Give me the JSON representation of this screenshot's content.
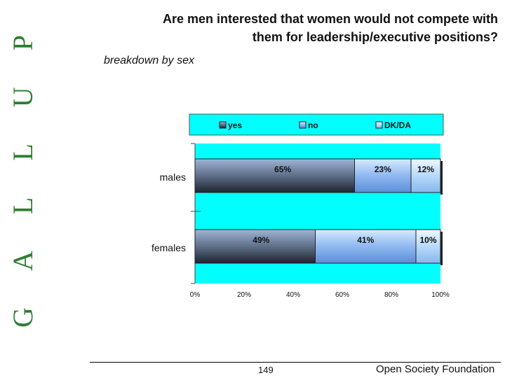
{
  "brand": {
    "text": "GALLUP"
  },
  "header": {
    "title_line1": "Are men interested that women would not compete with",
    "title_line2": "them for leadership/executive positions?",
    "subtitle": "breakdown by sex"
  },
  "footer": {
    "page_number": "149",
    "organization": "Open Society Foundation"
  },
  "chart_data": {
    "type": "bar",
    "orientation": "horizontal",
    "stacked": true,
    "percent": true,
    "categories": [
      "males",
      "females"
    ],
    "series": [
      {
        "name": "yes",
        "values": [
          65,
          49
        ],
        "labels": [
          "65%",
          "49%"
        ]
      },
      {
        "name": "no",
        "values": [
          23,
          41
        ],
        "labels": [
          "23%",
          "41%"
        ]
      },
      {
        "name": "DK/DA",
        "values": [
          12,
          10
        ],
        "labels": [
          "12%",
          "10%"
        ]
      }
    ],
    "xlim": [
      0,
      100
    ],
    "xticks": [
      "0%",
      "20%",
      "40%",
      "60%",
      "80%",
      "100%"
    ],
    "legend_position": "top",
    "grid": false,
    "colors": {
      "plot_background": "#00FFFF",
      "legend_background": "#00FFFF",
      "yes": "#5F6F88",
      "no": "#8FB8F0",
      "dkda": "#B8DAFA"
    }
  }
}
